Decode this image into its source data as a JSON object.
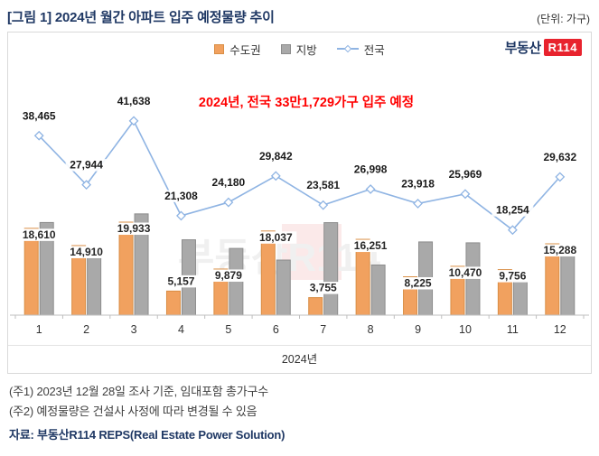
{
  "header": {
    "title": "[그림 1] 2024년 월간 아파트 입주 예정물량 추이",
    "unit": "(단위: 가구)"
  },
  "logo": {
    "prefix": "부동산",
    "badge": "R114"
  },
  "legend": {
    "items": [
      {
        "label": "수도권"
      },
      {
        "label": "지방"
      },
      {
        "label": "전국"
      }
    ]
  },
  "annotation": "2024년, 전국 33만1,729가구 입주 예정",
  "watermark": "부동산R114",
  "colors": {
    "title": "#1F3864",
    "annotation": "#FF0000",
    "badge": "#E8232E",
    "sudogwon": "#F1A15F",
    "jibang": "#A9A9A9",
    "jeonguk_line": "#8FB4E3"
  },
  "chart_data": {
    "type": "bar+line",
    "title": "2024년 월간 아파트 입주 예정물량 추이",
    "categories": [
      "1",
      "2",
      "3",
      "4",
      "5",
      "6",
      "7",
      "8",
      "9",
      "10",
      "11",
      "12"
    ],
    "xlabel": "2024년",
    "ylabel": "가구",
    "ylim": [
      0,
      42000
    ],
    "grid": false,
    "legend_position": "top",
    "series": [
      {
        "name": "수도권",
        "type": "bar",
        "color": "#F1A15F",
        "border": "#D98E45",
        "data_labels": true,
        "values": [
          18610,
          14910,
          19933,
          5157,
          9879,
          18037,
          3755,
          16251,
          8225,
          10470,
          9756,
          15288
        ]
      },
      {
        "name": "지방",
        "type": "bar",
        "color": "#A9A9A9",
        "border": "#8C8C8C",
        "data_labels": false,
        "estimated": true,
        "values": [
          19855,
          13034,
          21705,
          16151,
          14301,
          11805,
          19826,
          10747,
          15693,
          15499,
          8498,
          14344
        ]
      },
      {
        "name": "전국",
        "type": "line",
        "color": "#8FB4E3",
        "marker": "diamond",
        "data_labels": true,
        "values": [
          38465,
          27944,
          41638,
          21308,
          24180,
          29842,
          23581,
          26998,
          23918,
          25969,
          18254,
          29632
        ]
      }
    ]
  },
  "footnotes": {
    "note1": "(주1) 2023년 12월 28일 조사 기준, 임대포함 총가구수",
    "note2": "(주2) 예정물량은 건설사 사정에 따라 변경될 수 있음",
    "source": "자료: 부동산R114 REPS(Real Estate Power Solution)"
  }
}
